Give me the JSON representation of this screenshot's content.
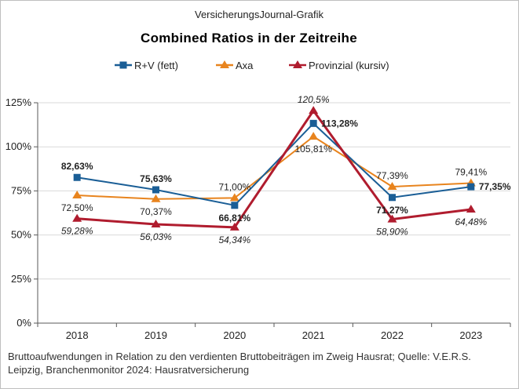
{
  "source": "VersicherungsJournal-Grafik",
  "title": "Combined  Ratios  in der Zeitreihe",
  "footnote": {
    "line1": "Bruttoaufwendungen  in Relation zu den verdienten  Bruttobeiträgen  im Zweig Hausrat; Quelle: V.E.R.S.",
    "line2": "Leipzig, Branchenmonitor  2024: Hausratversicherung"
  },
  "chart_data": {
    "type": "line",
    "categories": [
      "2018",
      "2019",
      "2020",
      "2021",
      "2022",
      "2023"
    ],
    "ylim": [
      0,
      125
    ],
    "yticks": [
      0,
      25,
      50,
      75,
      100,
      125
    ],
    "ytick_labels": [
      "0%",
      "25%",
      "50%",
      "75%",
      "100%",
      "125%"
    ],
    "legend_position": "top",
    "series": [
      {
        "name": "R+V (fett)",
        "color": "#1a5e96",
        "marker": "square",
        "label_style": "bold",
        "values": [
          82.63,
          75.63,
          66.81,
          113.28,
          71.27,
          77.35
        ],
        "labels": [
          "82,63%",
          "75,63%",
          "66,81%",
          "113,28%",
          "71,27%",
          "77,35%"
        ],
        "label_positions": [
          "above",
          "above",
          "below",
          "right",
          "below",
          "right"
        ]
      },
      {
        "name": "Axa",
        "color": "#e8841e",
        "marker": "triangle",
        "label_style": "normal",
        "values": [
          72.5,
          70.37,
          71.0,
          105.81,
          77.39,
          79.41
        ],
        "labels": [
          "72,50%",
          "70,37%",
          "71,00%",
          "105,81%",
          "77,39%",
          "79,41%"
        ],
        "label_positions": [
          "below",
          "below",
          "above",
          "below",
          "above",
          "above"
        ]
      },
      {
        "name": "Provinzial (kursiv)",
        "color": "#b01c2e",
        "marker": "triangle",
        "label_style": "italic",
        "values": [
          59.28,
          56.03,
          54.34,
          120.5,
          58.9,
          64.48
        ],
        "labels": [
          "59,28%",
          "56,03%",
          "54,34%",
          "120,5%",
          "58,90%",
          "64,48%"
        ],
        "label_positions": [
          "below",
          "below",
          "below",
          "above",
          "below",
          "below"
        ]
      }
    ]
  }
}
